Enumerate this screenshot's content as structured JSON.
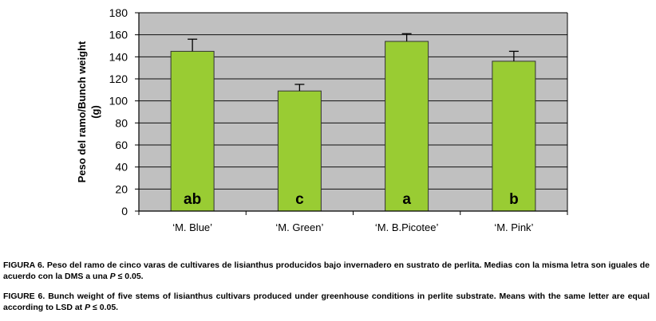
{
  "chart_data": {
    "type": "bar",
    "categories": [
      "‘M. Blue’",
      "‘M. Green’",
      "‘M. B.Picotee’",
      "‘M. Pink’"
    ],
    "values": [
      145,
      109,
      154,
      136
    ],
    "errors": [
      11,
      6,
      7,
      9
    ],
    "bar_labels": [
      "ab",
      "c",
      "a",
      "b"
    ],
    "ylabel": "Peso del ramo/Bunch weight (g)",
    "ylabel_lines": [
      "Peso del ramo/Bunch weight",
      "(g)"
    ],
    "ylim": [
      0,
      180
    ],
    "yticks": [
      0,
      20,
      40,
      60,
      80,
      100,
      120,
      140,
      160,
      180
    ],
    "grid": true,
    "colors": {
      "bar": "#99cc33",
      "bar_stroke": "#333333",
      "plot_bg": "#c0c0c0",
      "grid": "#111111"
    }
  },
  "captions": {
    "es_label": "FIGURA 6.",
    "es_text_before_p": "Peso del ramo de cinco varas de cultivares de lisianthus producidos bajo invernadero en sustrato de perlita. Medias con la misma letra son iguales de acuerdo con la DMS a una",
    "es_p": "P",
    "es_text_after_p": "≤ 0.05.",
    "en_label": "FIGURE 6.",
    "en_text_before_p": "Bunch weight of five stems of lisianthus cultivars produced under greenhouse conditions in perlite substrate. Means with the same letter are equal according to LSD at",
    "en_p": "P",
    "en_text_after_p": "≤ 0.05."
  }
}
